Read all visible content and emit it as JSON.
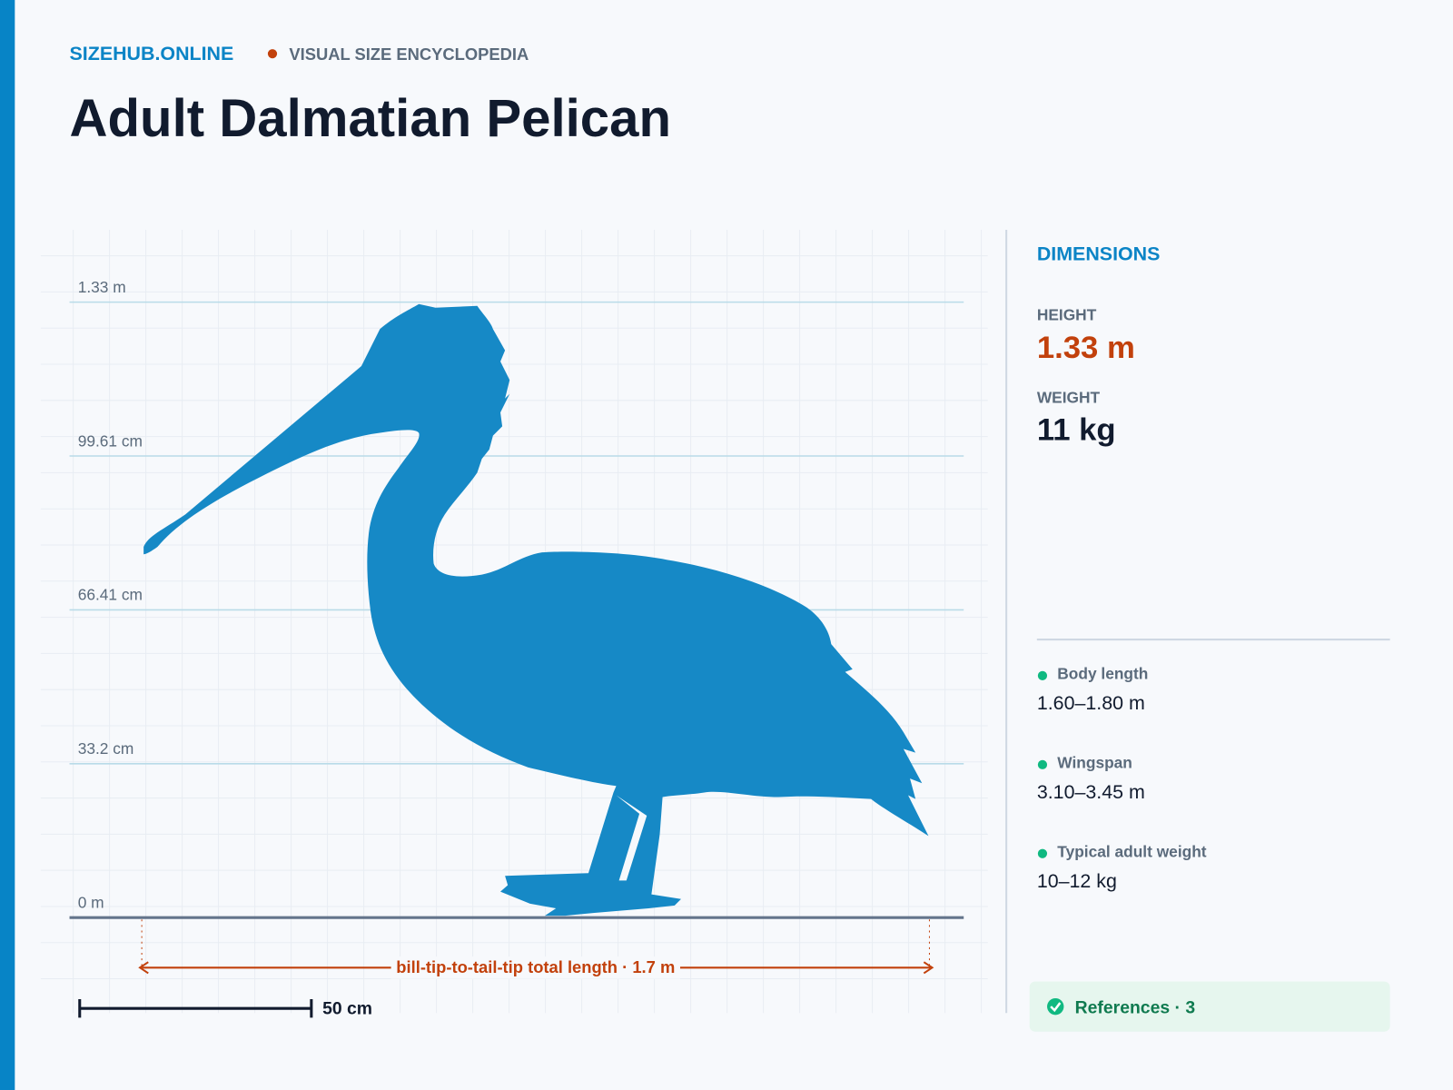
{
  "header": {
    "site": "SIZEHUB.ONLINE",
    "tagline": "VISUAL SIZE ENCYCLOPEDIA",
    "title": "Adult Dalmatian Pelican"
  },
  "scale_view": {
    "height_labels": [
      "1.33 m",
      "99.61 cm",
      "66.41 cm",
      "33.2 cm",
      "0 m"
    ],
    "length_label": "bill-tip-to-tail-tip total length · 1.7 m",
    "scale_bar_label": "50 cm"
  },
  "panel": {
    "heading": "DIMENSIONS",
    "stats": [
      {
        "label": "HEIGHT",
        "value": "1.33 m"
      },
      {
        "label": "WEIGHT",
        "value": "11 kg"
      }
    ],
    "details": [
      {
        "label": "Body length",
        "value": "1.60–1.80 m"
      },
      {
        "label": "Wingspan",
        "value": "3.10–3.45 m"
      },
      {
        "label": "Typical adult weight",
        "value": "10–12 kg"
      }
    ],
    "references": "References · 3"
  }
}
